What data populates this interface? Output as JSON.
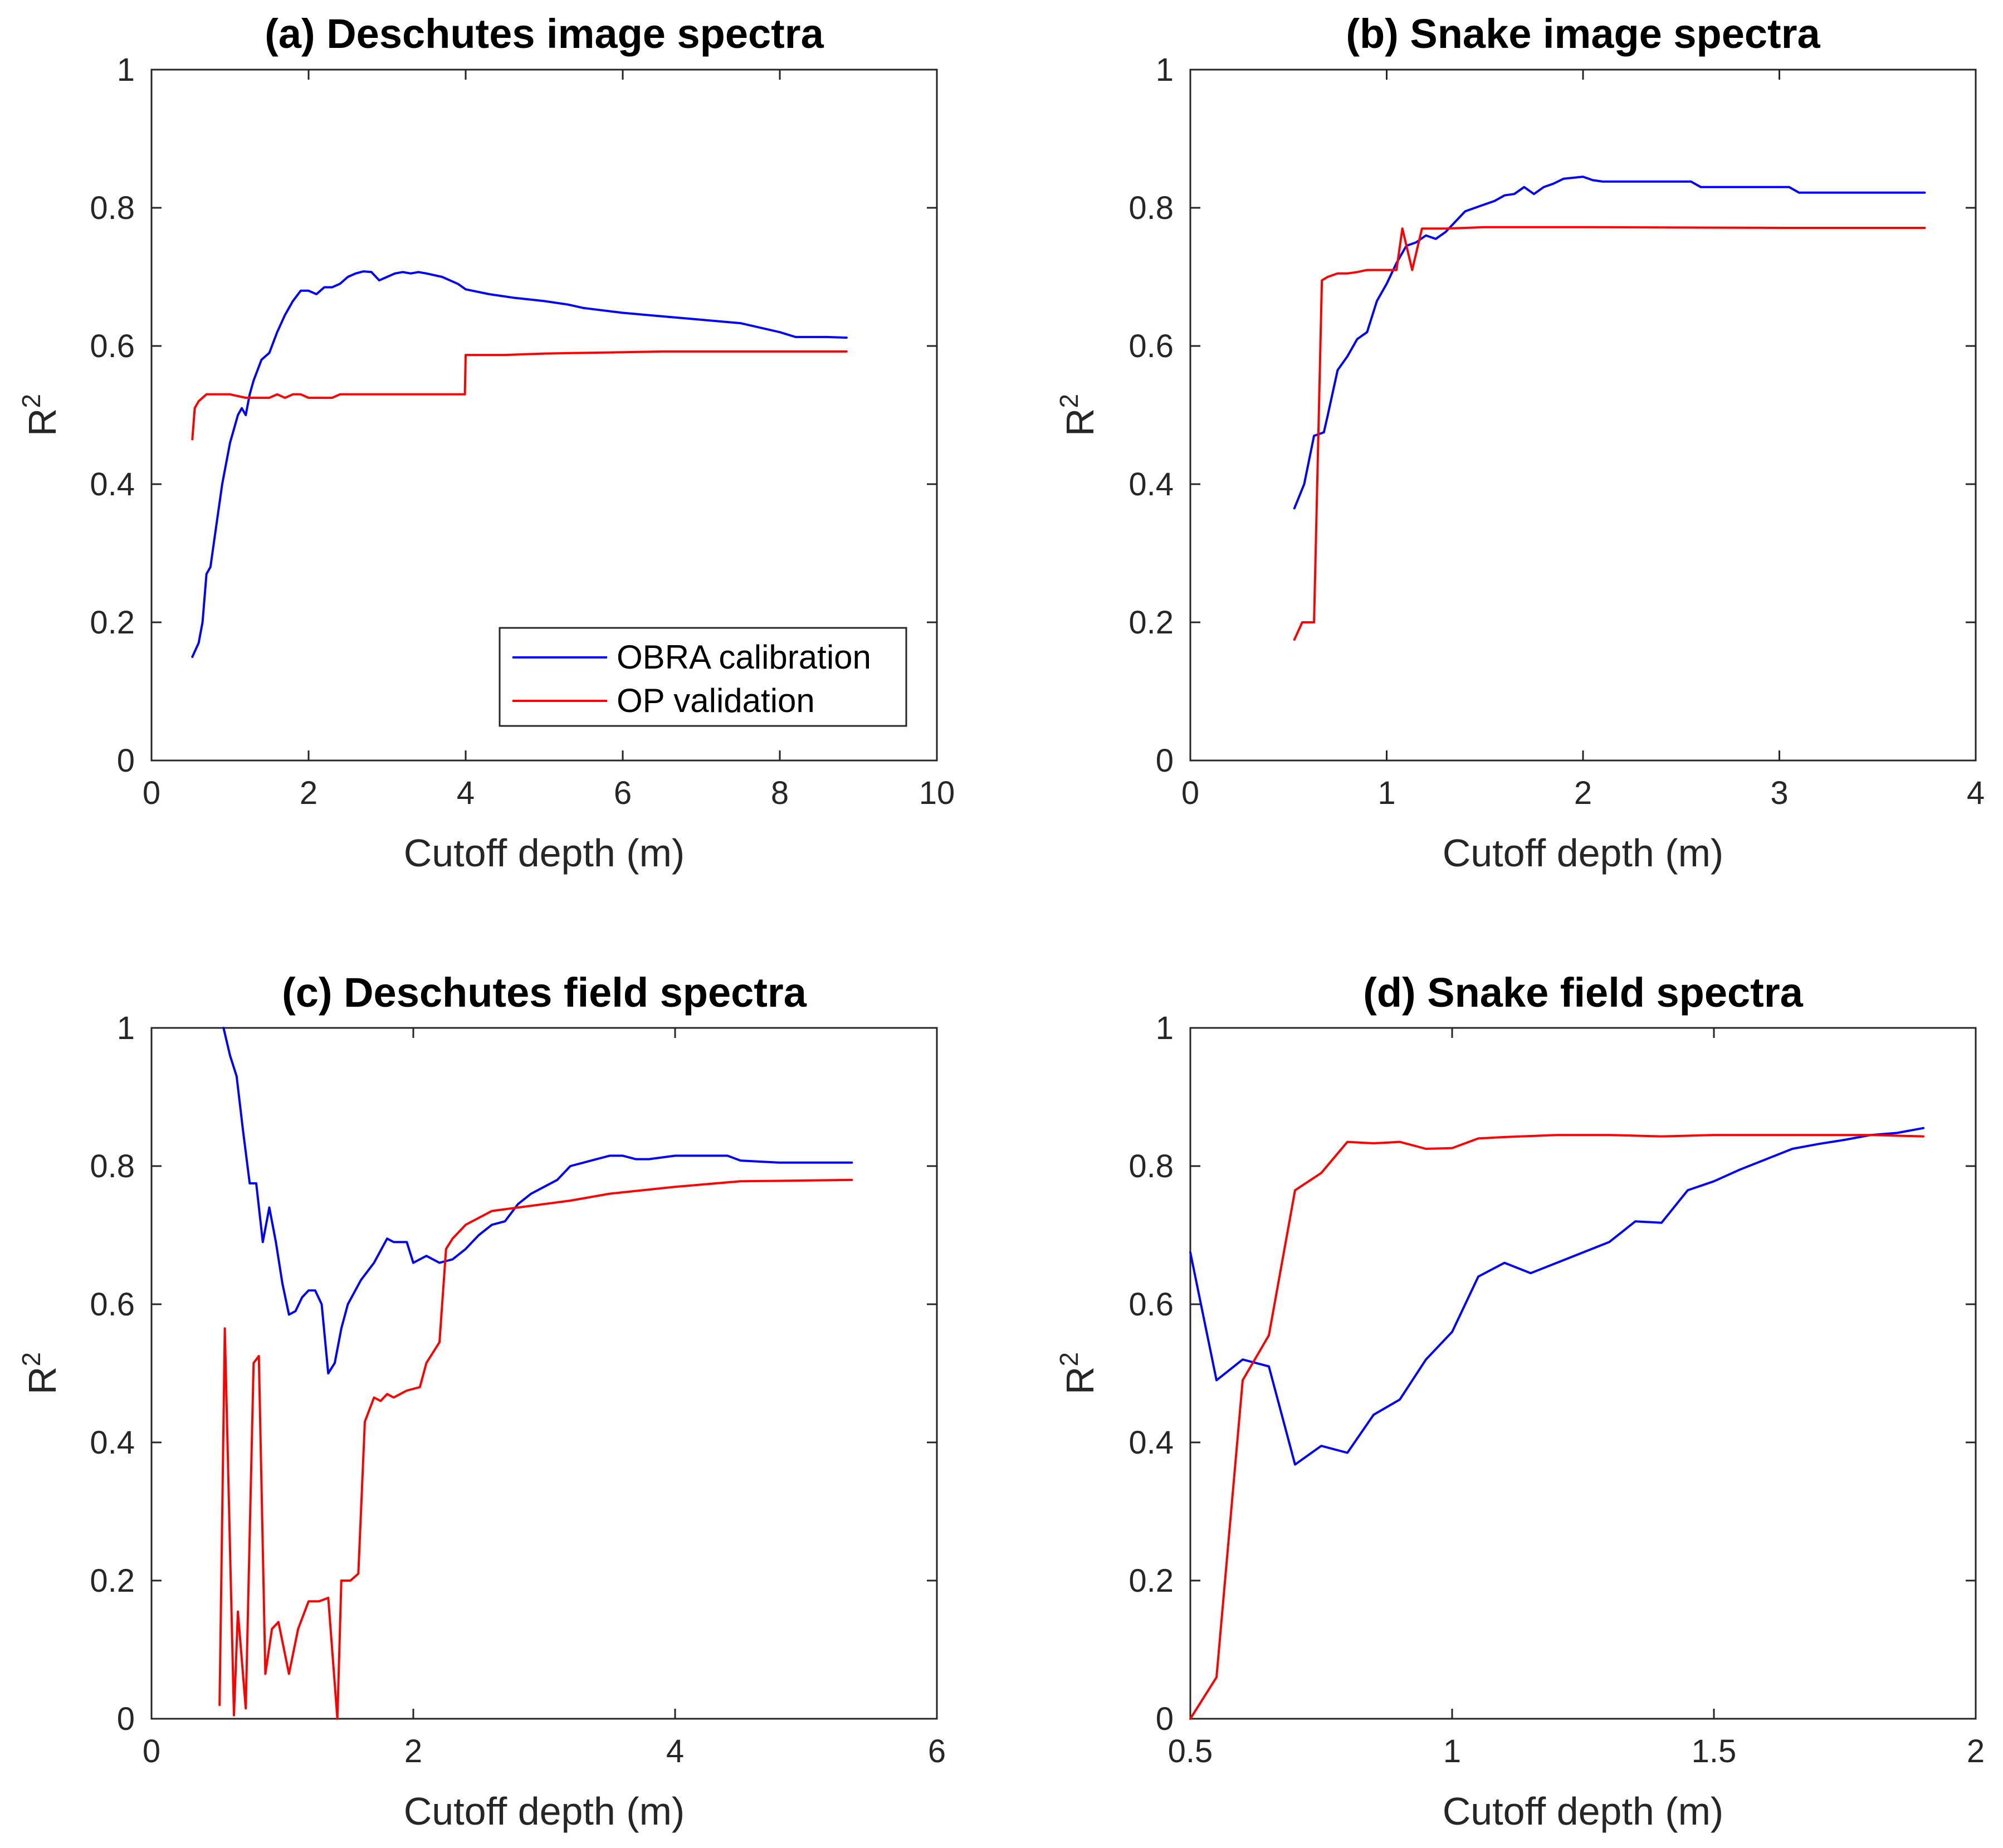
{
  "colors": {
    "calibration": "#0000ff",
    "validation": "#ff0000",
    "axis": "#262626"
  },
  "legend": {
    "entries": [
      "OBRA calibration",
      "OP validation"
    ],
    "location": "south-east of panel (a)"
  },
  "chart_data": [
    {
      "panel": "a",
      "type": "line",
      "title": "(a) Deschutes image spectra",
      "xlabel": "Cutoff depth (m)",
      "ylabel": "R",
      "ylabel_superscript": "2",
      "xlim": [
        0,
        10
      ],
      "ylim": [
        0,
        1
      ],
      "xticks": [
        0,
        2,
        4,
        6,
        8,
        10
      ],
      "xtick_labels": [
        "0",
        "2",
        "4",
        "6",
        "8",
        "10"
      ],
      "yticks": [
        0,
        0.2,
        0.4,
        0.6,
        0.8,
        1
      ],
      "ytick_labels": [
        "0",
        "0.2",
        "0.4",
        "0.6",
        "0.8",
        "1"
      ],
      "has_legend": true,
      "series": [
        {
          "name": "OBRA calibration",
          "color": "#0000ff",
          "x": [
            0.52,
            0.6,
            0.65,
            0.7,
            0.75,
            0.8,
            0.9,
            1.0,
            1.05,
            1.1,
            1.15,
            1.2,
            1.25,
            1.3,
            1.4,
            1.5,
            1.6,
            1.7,
            1.8,
            1.9,
            2.0,
            2.1,
            2.2,
            2.3,
            2.4,
            2.5,
            2.6,
            2.7,
            2.8,
            2.9,
            3.0,
            3.1,
            3.2,
            3.3,
            3.4,
            3.5,
            3.7,
            3.9,
            4.0,
            4.3,
            4.6,
            5.0,
            5.3,
            5.5,
            6.0,
            6.5,
            7.0,
            7.5,
            8.0,
            8.2,
            8.6,
            8.85
          ],
          "y": [
            0.15,
            0.17,
            0.2,
            0.27,
            0.28,
            0.32,
            0.4,
            0.46,
            0.48,
            0.5,
            0.51,
            0.5,
            0.53,
            0.55,
            0.58,
            0.59,
            0.62,
            0.645,
            0.665,
            0.68,
            0.68,
            0.675,
            0.685,
            0.685,
            0.69,
            0.7,
            0.705,
            0.708,
            0.707,
            0.695,
            0.7,
            0.705,
            0.707,
            0.705,
            0.707,
            0.705,
            0.7,
            0.69,
            0.682,
            0.675,
            0.67,
            0.665,
            0.66,
            0.655,
            0.648,
            0.643,
            0.638,
            0.633,
            0.62,
            0.613,
            0.613,
            0.612
          ]
        },
        {
          "name": "OP validation",
          "color": "#ff0000",
          "x": [
            0.52,
            0.55,
            0.6,
            0.7,
            0.8,
            1.0,
            1.2,
            1.3,
            1.5,
            1.6,
            1.7,
            1.8,
            1.9,
            2.0,
            2.3,
            2.4,
            3.0,
            3.5,
            3.99,
            4.0,
            4.5,
            5.0,
            5.5,
            6.0,
            6.5,
            7.0,
            8.0,
            8.85
          ],
          "y": [
            0.465,
            0.51,
            0.52,
            0.53,
            0.53,
            0.53,
            0.525,
            0.525,
            0.525,
            0.53,
            0.525,
            0.53,
            0.53,
            0.525,
            0.525,
            0.53,
            0.53,
            0.53,
            0.53,
            0.587,
            0.587,
            0.589,
            0.59,
            0.591,
            0.592,
            0.592,
            0.592,
            0.592
          ]
        }
      ]
    },
    {
      "panel": "b",
      "type": "line",
      "title": "(b) Snake image spectra",
      "xlabel": "Cutoff depth (m)",
      "ylabel": "R",
      "ylabel_superscript": "2",
      "xlim": [
        0,
        4
      ],
      "ylim": [
        0,
        1
      ],
      "xticks": [
        0,
        1,
        2,
        3,
        4
      ],
      "xtick_labels": [
        "0",
        "1",
        "2",
        "3",
        "4"
      ],
      "yticks": [
        0,
        0.2,
        0.4,
        0.6,
        0.8,
        1
      ],
      "ytick_labels": [
        "0",
        "0.2",
        "0.4",
        "0.6",
        "0.8",
        "1"
      ],
      "has_legend": false,
      "series": [
        {
          "name": "OBRA calibration",
          "color": "#0000ff",
          "x": [
            0.53,
            0.58,
            0.63,
            0.68,
            0.7,
            0.75,
            0.8,
            0.85,
            0.9,
            0.95,
            1.0,
            1.05,
            1.1,
            1.15,
            1.2,
            1.25,
            1.3,
            1.35,
            1.4,
            1.5,
            1.55,
            1.6,
            1.65,
            1.7,
            1.75,
            1.8,
            1.85,
            1.9,
            2.0,
            2.05,
            2.1,
            2.55,
            2.6,
            3.05,
            3.1,
            3.74
          ],
          "y": [
            0.365,
            0.4,
            0.47,
            0.475,
            0.5,
            0.565,
            0.585,
            0.61,
            0.62,
            0.665,
            0.69,
            0.72,
            0.745,
            0.75,
            0.76,
            0.755,
            0.765,
            0.78,
            0.795,
            0.805,
            0.81,
            0.818,
            0.82,
            0.83,
            0.82,
            0.83,
            0.835,
            0.842,
            0.845,
            0.84,
            0.838,
            0.838,
            0.83,
            0.83,
            0.822,
            0.822
          ]
        },
        {
          "name": "OP validation",
          "color": "#ff0000",
          "x": [
            0.53,
            0.57,
            0.6,
            0.63,
            0.67,
            0.7,
            0.75,
            0.8,
            0.85,
            0.9,
            1.0,
            1.05,
            1.08,
            1.13,
            1.18,
            1.3,
            1.5,
            2.0,
            3.0,
            3.74
          ],
          "y": [
            0.175,
            0.2,
            0.2,
            0.2,
            0.695,
            0.7,
            0.705,
            0.705,
            0.707,
            0.71,
            0.71,
            0.71,
            0.77,
            0.71,
            0.77,
            0.77,
            0.772,
            0.772,
            0.771,
            0.771
          ]
        }
      ]
    },
    {
      "panel": "c",
      "type": "line",
      "title": "(c) Deschutes field spectra",
      "xlabel": "Cutoff depth (m)",
      "ylabel": "R",
      "ylabel_superscript": "2",
      "xlim": [
        0,
        6
      ],
      "ylim": [
        0,
        1
      ],
      "xticks": [
        0,
        2,
        4,
        6
      ],
      "xtick_labels": [
        "0",
        "2",
        "4",
        "6"
      ],
      "yticks": [
        0,
        0.2,
        0.4,
        0.6,
        0.8,
        1
      ],
      "ytick_labels": [
        "0",
        "0.2",
        "0.4",
        "0.6",
        "0.8",
        "1"
      ],
      "has_legend": false,
      "series": [
        {
          "name": "OBRA calibration",
          "color": "#0000ff",
          "x": [
            0.55,
            0.6,
            0.65,
            0.7,
            0.75,
            0.8,
            0.85,
            0.9,
            0.95,
            1.0,
            1.05,
            1.1,
            1.15,
            1.2,
            1.25,
            1.3,
            1.35,
            1.4,
            1.45,
            1.5,
            1.6,
            1.7,
            1.8,
            1.85,
            1.95,
            2.0,
            2.1,
            2.2,
            2.3,
            2.4,
            2.5,
            2.6,
            2.7,
            2.8,
            2.9,
            3.0,
            3.1,
            3.2,
            3.3,
            3.4,
            3.5,
            3.6,
            3.7,
            3.8,
            4.0,
            4.2,
            4.4,
            4.5,
            4.8,
            5.0,
            5.35
          ],
          "y": [
            1.0,
            0.96,
            0.93,
            0.85,
            0.775,
            0.775,
            0.69,
            0.74,
            0.69,
            0.63,
            0.585,
            0.59,
            0.61,
            0.62,
            0.62,
            0.6,
            0.5,
            0.515,
            0.565,
            0.6,
            0.635,
            0.66,
            0.695,
            0.69,
            0.69,
            0.66,
            0.67,
            0.66,
            0.665,
            0.68,
            0.7,
            0.715,
            0.72,
            0.745,
            0.76,
            0.77,
            0.78,
            0.8,
            0.805,
            0.81,
            0.815,
            0.815,
            0.81,
            0.81,
            0.815,
            0.815,
            0.815,
            0.808,
            0.805,
            0.805,
            0.805
          ]
        },
        {
          "name": "OP validation",
          "color": "#ff0000",
          "x": [
            0.52,
            0.56,
            0.63,
            0.66,
            0.72,
            0.78,
            0.82,
            0.87,
            0.92,
            0.97,
            1.05,
            1.12,
            1.2,
            1.28,
            1.35,
            1.42,
            1.45,
            1.52,
            1.58,
            1.63,
            1.7,
            1.75,
            1.8,
            1.85,
            1.9,
            1.95,
            2.05,
            2.1,
            2.2,
            2.25,
            2.3,
            2.4,
            2.5,
            2.6,
            2.8,
            3.0,
            3.2,
            3.5,
            4.0,
            4.5,
            5.35
          ],
          "y": [
            0.02,
            0.565,
            0.005,
            0.155,
            0.015,
            0.515,
            0.525,
            0.065,
            0.13,
            0.14,
            0.065,
            0.13,
            0.17,
            0.17,
            0.175,
            0.0,
            0.2,
            0.2,
            0.21,
            0.43,
            0.465,
            0.46,
            0.47,
            0.465,
            0.47,
            0.475,
            0.48,
            0.515,
            0.545,
            0.68,
            0.695,
            0.715,
            0.725,
            0.735,
            0.74,
            0.745,
            0.75,
            0.76,
            0.77,
            0.778,
            0.78
          ]
        }
      ]
    },
    {
      "panel": "d",
      "type": "line",
      "title": "(d) Snake field spectra",
      "xlabel": "Cutoff depth (m)",
      "ylabel": "R",
      "ylabel_superscript": "2",
      "xlim": [
        0.5,
        2
      ],
      "ylim": [
        0,
        1
      ],
      "xticks": [
        0.5,
        1,
        1.5,
        2
      ],
      "xtick_labels": [
        "0.5",
        "1",
        "1.5",
        "2"
      ],
      "yticks": [
        0,
        0.2,
        0.4,
        0.6,
        0.8,
        1
      ],
      "ytick_labels": [
        "0",
        "0.2",
        "0.4",
        "0.6",
        "0.8",
        "1"
      ],
      "has_legend": false,
      "series": [
        {
          "name": "OBRA calibration",
          "color": "#0000ff",
          "x": [
            0.5,
            0.55,
            0.6,
            0.65,
            0.7,
            0.75,
            0.8,
            0.85,
            0.9,
            0.95,
            1.0,
            1.05,
            1.1,
            1.15,
            1.2,
            1.25,
            1.3,
            1.35,
            1.4,
            1.45,
            1.5,
            1.55,
            1.6,
            1.65,
            1.7,
            1.75,
            1.8,
            1.85,
            1.9
          ],
          "y": [
            0.675,
            0.49,
            0.52,
            0.51,
            0.368,
            0.395,
            0.385,
            0.44,
            0.462,
            0.52,
            0.56,
            0.64,
            0.66,
            0.645,
            0.66,
            0.675,
            0.69,
            0.72,
            0.718,
            0.765,
            0.778,
            0.795,
            0.81,
            0.825,
            0.832,
            0.838,
            0.845,
            0.848,
            0.855
          ]
        },
        {
          "name": "OP validation",
          "color": "#ff0000",
          "x": [
            0.5,
            0.55,
            0.6,
            0.65,
            0.7,
            0.75,
            0.8,
            0.85,
            0.9,
            0.95,
            1.0,
            1.05,
            1.1,
            1.2,
            1.3,
            1.4,
            1.5,
            1.6,
            1.7,
            1.8,
            1.9
          ],
          "y": [
            0.0,
            0.06,
            0.49,
            0.555,
            0.765,
            0.79,
            0.835,
            0.833,
            0.835,
            0.825,
            0.826,
            0.84,
            0.842,
            0.845,
            0.845,
            0.843,
            0.845,
            0.845,
            0.845,
            0.845,
            0.843
          ]
        }
      ]
    }
  ]
}
